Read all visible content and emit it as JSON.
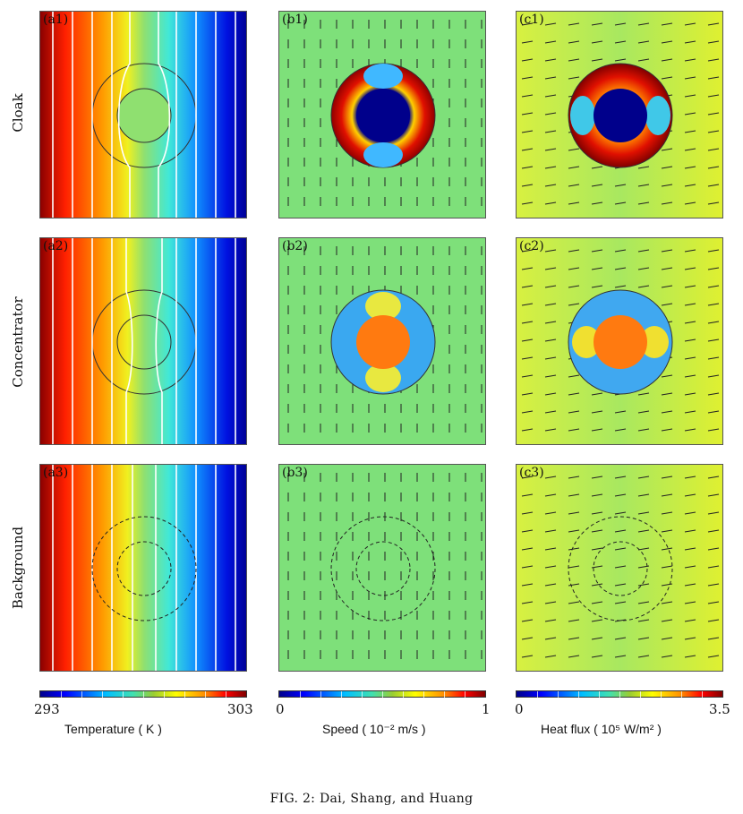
{
  "rows": {
    "cloak": "Cloak",
    "concentrator": "Concentrator",
    "background": "Background"
  },
  "panels": {
    "a1": "(a1)",
    "a2": "(a2)",
    "a3": "(a3)",
    "b1": "(b1)",
    "b2": "(b2)",
    "b3": "(b3)",
    "c1": "(c1)",
    "c2": "(c2)",
    "c3": "(c3)"
  },
  "colorbars": {
    "temperature": {
      "min": "293",
      "max": "303",
      "title": "Temperature ( K )"
    },
    "speed": {
      "min": "0",
      "max": "1",
      "title": "Speed ( 10⁻² m/s )"
    },
    "heat_flux": {
      "min": "0",
      "max": "3.5",
      "title": "Heat flux ( 10⁵ W/m² )"
    }
  },
  "caption": "FIG. 2: Dai, Shang, and Huang",
  "colors": {
    "field_green": "#7ee07a",
    "flux_yellow_green": "#c8ee4a",
    "dark_blue": "#00008b",
    "dark_red": "#8b0000"
  }
}
